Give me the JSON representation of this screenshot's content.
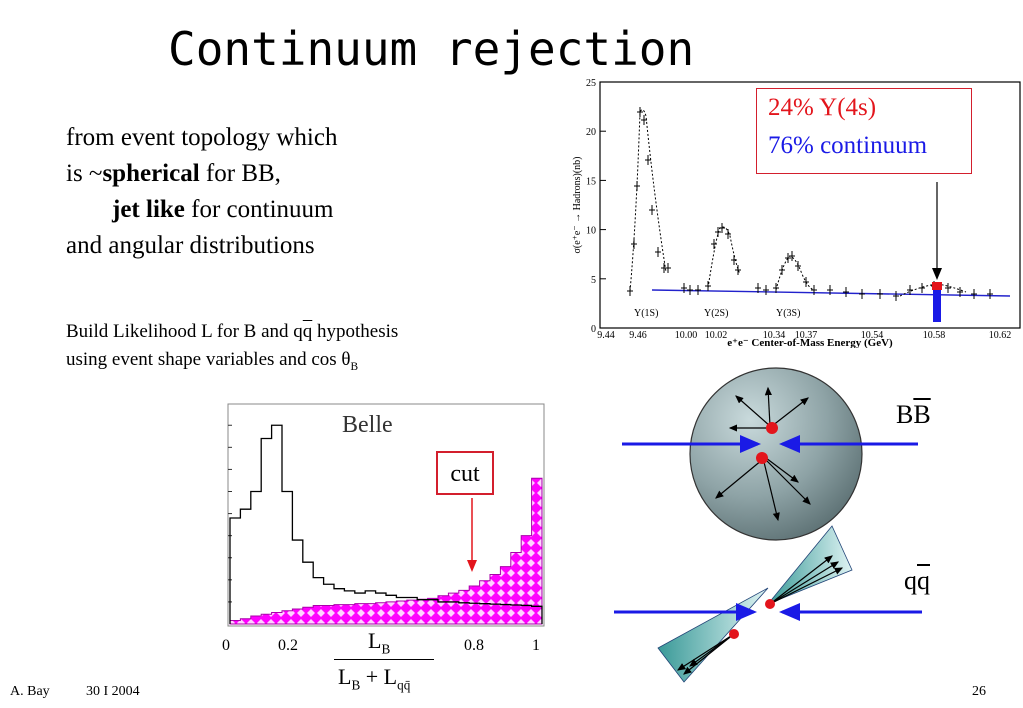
{
  "slide": {
    "title": "Continuum rejection",
    "topology": {
      "line1": "from event topology which",
      "line2_pre": "is ~",
      "line2_bold": "spherical",
      "line2_post": " for BB,",
      "line3_bold": "jet like",
      "line3_post": " for continuum",
      "line4": "and angular distributions"
    },
    "likelihood": {
      "l1_pre": "Build Likelihood L for B and q",
      "l1_qbar": "q",
      "l1_post": " hypothesis",
      "l2_pre": "using event shape variables and cos ",
      "l2_theta": "θ",
      "l2_sub": "B"
    },
    "footer": {
      "author": "A. Bay",
      "date": "30 I 2004",
      "page": "26"
    }
  },
  "resonance_chart": {
    "legend_y4s": "24% Υ(4s)",
    "legend_continuum": "76% continuum",
    "ylabel": "σ(e⁺e⁻ → Hadrons)(nb)",
    "xlabel": "e⁺e⁻ Center-of-Mass Energy (GeV)",
    "yticks": [
      "25",
      "20",
      "15",
      "10",
      "5",
      "0"
    ],
    "xticks": [
      "9.44",
      "9.46",
      "10.00",
      "10.02",
      "10.34",
      "10.37",
      "10.54",
      "10.58",
      "10.62"
    ],
    "peaks": [
      "Υ(1S)",
      "Υ(2S)",
      "Υ(3S)"
    ]
  },
  "belle_plot": {
    "title": "Belle",
    "cut_label": "cut",
    "xticks": [
      "0",
      "0.2",
      "0.8",
      "1"
    ],
    "frac_num": "L",
    "frac_num_sub": "B",
    "frac_den_a": "L",
    "frac_den_a_sub": "B",
    "frac_den_plus": " + L",
    "frac_den_b_sub": "qq̄"
  },
  "topology_diagrams": {
    "bb_label_b": "B",
    "bb_label_bbar": "B",
    "qq_label_q": "q",
    "qq_label_qbar": "q"
  },
  "chart_data": [
    {
      "type": "line",
      "title": "",
      "xlabel": "e⁺e⁻ Center-of-Mass Energy (GeV)",
      "ylabel": "σ(e⁺e⁻ → Hadrons)(nb)",
      "ylim": [
        0,
        25
      ],
      "annotations": [
        "24% Υ(4s)",
        "76% continuum",
        "Υ(1S)",
        "Υ(2S)",
        "Υ(3S)"
      ],
      "series": [
        {
          "values_description_points": [
            [
              9.44,
              3.5
            ],
            [
              9.45,
              8
            ],
            [
              9.455,
              15
            ],
            [
              9.46,
              22
            ],
            [
              9.465,
              17
            ],
            [
              9.47,
              10
            ],
            [
              9.48,
              4
            ],
            [
              10.0,
              3.5
            ],
            [
              10.015,
              6
            ],
            [
              10.023,
              9.5
            ],
            [
              10.03,
              6
            ],
            [
              10.04,
              3.5
            ],
            [
              10.34,
              3.2
            ],
            [
              10.355,
              7
            ],
            [
              10.365,
              5
            ],
            [
              10.38,
              3
            ],
            [
              10.54,
              3.2
            ],
            [
              10.58,
              4
            ],
            [
              10.62,
              3
            ]
          ]
        }
      ]
    },
    {
      "type": "bar",
      "title": "Belle",
      "xlabel": "L_B / (L_B + L_qq̄)",
      "xlim": [
        0,
        1
      ],
      "annotations": [
        "cut"
      ],
      "series": [
        {
          "name": "continuum",
          "values": [
            240,
            260,
            300,
            420,
            450,
            300,
            190,
            140,
            105,
            90,
            80,
            75,
            70,
            75,
            70,
            65,
            60,
            60,
            55,
            55,
            50,
            50,
            48,
            47,
            46,
            45,
            44,
            43,
            42,
            40
          ]
        },
        {
          "name": "BB",
          "values": [
            8,
            12,
            18,
            22,
            26,
            30,
            34,
            38,
            42,
            42,
            44,
            44,
            46,
            46,
            48,
            50,
            52,
            54,
            56,
            58,
            64,
            70,
            76,
            86,
            98,
            112,
            130,
            162,
            200,
            330
          ]
        }
      ]
    }
  ]
}
